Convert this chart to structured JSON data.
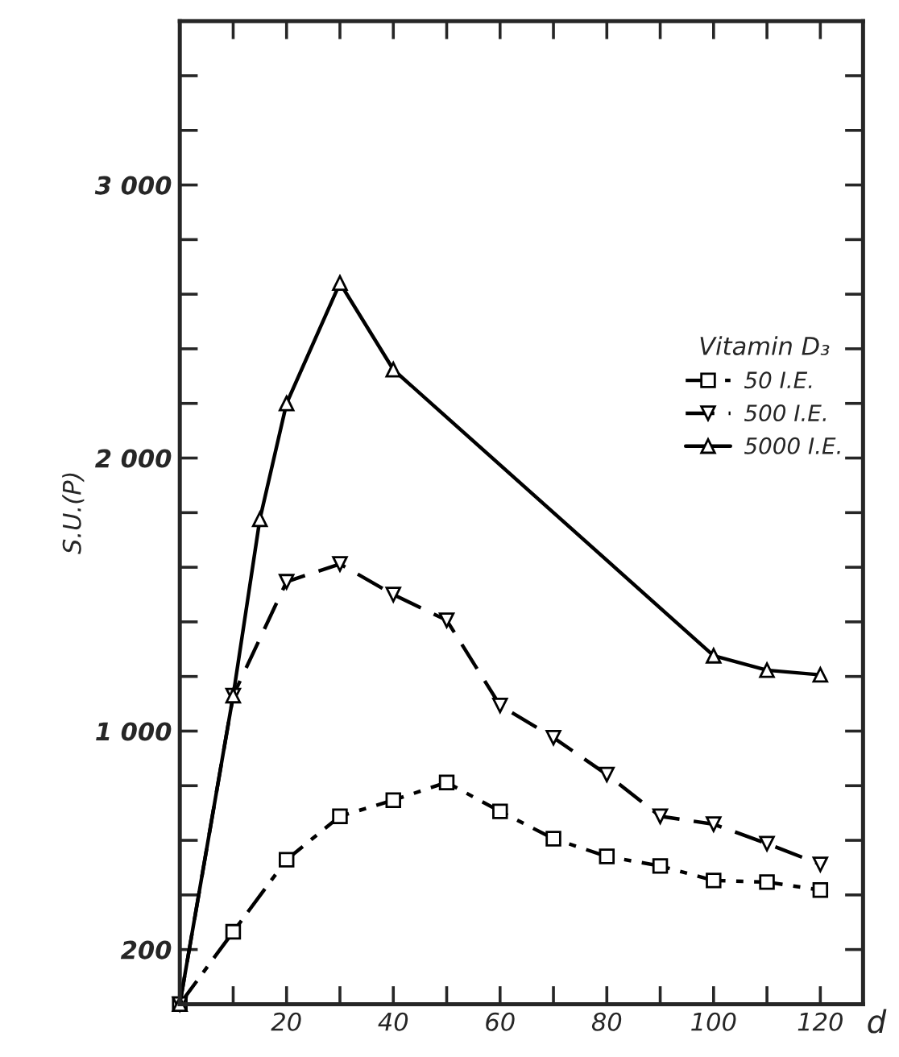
{
  "chart_data": {
    "type": "line",
    "xlabel": "d",
    "ylabel": "S.U.(P)",
    "legend_title": "Vitamin D₃",
    "legend": "top right",
    "grid": false,
    "xlim": [
      0,
      128
    ],
    "ylim": [
      0,
      3600
    ],
    "xticks": [
      {
        "value": 10,
        "label": null
      },
      20,
      {
        "value": 30,
        "label": null
      },
      40,
      {
        "value": 50,
        "label": null
      },
      60,
      {
        "value": 70,
        "label": null
      },
      80,
      {
        "value": 90,
        "label": null
      },
      100,
      {
        "value": 110,
        "label": null
      },
      120
    ],
    "yticks": [
      200,
      {
        "value": 400,
        "label": null
      },
      {
        "value": 600,
        "label": null
      },
      {
        "value": 800,
        "label": null
      },
      {
        "value": 1000,
        "label": "1 000"
      },
      {
        "value": 1200,
        "label": null
      },
      {
        "value": 1400,
        "label": null
      },
      {
        "value": 1600,
        "label": null
      },
      {
        "value": 1800,
        "label": null
      },
      {
        "value": 2000,
        "label": "2 000"
      },
      {
        "value": 2200,
        "label": null
      },
      {
        "value": 2400,
        "label": null
      },
      {
        "value": 2600,
        "label": null
      },
      {
        "value": 2800,
        "label": null
      },
      {
        "value": 3000,
        "label": "3 000"
      },
      {
        "value": 3200,
        "label": null
      },
      {
        "value": 3400,
        "label": null
      }
    ],
    "series": [
      {
        "name": "50 I.E.",
        "color": "#000000",
        "marker": "square",
        "line_style": "dashdot",
        "x": [
          0,
          10,
          20,
          30,
          40,
          50,
          60,
          70,
          80,
          90,
          100,
          110,
          120
        ],
        "values": [
          0,
          265,
          529,
          688,
          747,
          812,
          706,
          606,
          541,
          506,
          453,
          447,
          418
        ]
      },
      {
        "name": "500 I.E.",
        "color": "#000000",
        "marker": "triangle_down",
        "line_style": "dashed",
        "x": [
          0,
          10,
          20,
          30,
          40,
          50,
          60,
          70,
          80,
          90,
          100,
          110,
          120
        ],
        "values": [
          0,
          1130,
          1547,
          1612,
          1500,
          1406,
          1094,
          976,
          841,
          688,
          659,
          588,
          512
        ]
      },
      {
        "name": "5000 I.E.",
        "color": "#000000",
        "marker": "triangle",
        "line_style": "solid",
        "x": [
          0,
          10,
          15,
          20,
          30,
          40,
          100,
          110,
          120
        ],
        "values": [
          0,
          1130,
          1776,
          2200,
          2641,
          2324,
          1276,
          1223,
          1206
        ]
      }
    ]
  }
}
